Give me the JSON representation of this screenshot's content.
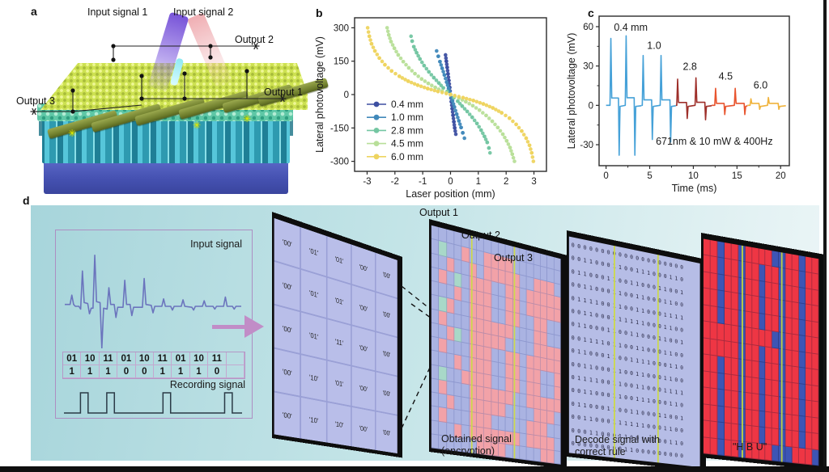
{
  "panels": {
    "a": {
      "label": "a",
      "input1": "Input signal 1",
      "input2": "Input signal 2",
      "output1": "Output 1",
      "output2": "Output 2",
      "output3": "Output 3"
    },
    "b": {
      "label": "b"
    },
    "c": {
      "label": "c"
    },
    "d": {
      "label": "d",
      "input_signal_label": "Input signal",
      "recording_signal_label": "Recording signal",
      "code_row1": [
        "01",
        "10",
        "11",
        "01",
        "10",
        "11",
        "01",
        "10",
        "11",
        ""
      ],
      "code_row2": [
        "1",
        "1",
        "1",
        "0",
        "0",
        "1",
        "1",
        "1",
        "0",
        ""
      ],
      "waveform_points": [
        [
          0,
          2
        ],
        [
          3,
          2
        ],
        [
          4,
          12
        ],
        [
          5,
          2
        ],
        [
          6,
          0
        ],
        [
          8,
          0
        ],
        [
          9,
          -3
        ],
        [
          10,
          38
        ],
        [
          11,
          4
        ],
        [
          13,
          3
        ],
        [
          14,
          -8
        ],
        [
          15,
          -2
        ],
        [
          16,
          -2
        ],
        [
          17,
          55
        ],
        [
          18,
          5
        ],
        [
          20,
          4
        ],
        [
          21,
          -45
        ],
        [
          22,
          -2
        ],
        [
          24,
          -3
        ],
        [
          25,
          20
        ],
        [
          26,
          2
        ],
        [
          28,
          2
        ],
        [
          29,
          -12
        ],
        [
          30,
          -1
        ],
        [
          33,
          -1
        ],
        [
          34,
          28
        ],
        [
          35,
          2
        ],
        [
          37,
          2
        ],
        [
          38,
          -10
        ],
        [
          39,
          -1
        ],
        [
          44,
          -1
        ],
        [
          45,
          30
        ],
        [
          46,
          2
        ],
        [
          49,
          1
        ],
        [
          50,
          -7
        ],
        [
          51,
          0
        ],
        [
          55,
          0
        ],
        [
          56,
          8
        ],
        [
          57,
          0
        ],
        [
          60,
          0
        ],
        [
          61,
          -4
        ],
        [
          62,
          0
        ],
        [
          66,
          0
        ],
        [
          67,
          7
        ],
        [
          68,
          0
        ],
        [
          72,
          -1
        ],
        [
          73,
          -4
        ],
        [
          74,
          0
        ],
        [
          78,
          0
        ],
        [
          79,
          6
        ],
        [
          80,
          0
        ],
        [
          84,
          0
        ],
        [
          85,
          -3
        ],
        [
          86,
          0
        ],
        [
          90,
          0
        ],
        [
          91,
          10
        ],
        [
          92,
          0
        ],
        [
          95,
          0
        ],
        [
          96,
          -3
        ],
        [
          97,
          0
        ],
        [
          100,
          0
        ]
      ],
      "recording_pulses": [
        0.1,
        0.245,
        0.555,
        0.895
      ],
      "grid_codes": [
        [
          "'00'",
          "'01'",
          "'01'",
          "'00'",
          "'00'"
        ],
        [
          "'00'",
          "'01'",
          "'01'",
          "'00'",
          "'00'"
        ],
        [
          "'00'",
          "'01'",
          "'11'",
          "'00'",
          "'00'"
        ],
        [
          "'00'",
          "'10'",
          "'01'",
          "'00'",
          "'00'"
        ],
        [
          "'00'",
          "'10'",
          "'10'",
          "'00'",
          "'00'"
        ]
      ],
      "outputs": [
        "Output 1",
        "Output 2",
        "Output 3"
      ],
      "encrypted_grid": [
        "LLLLLLLLLLLLLLLLLL",
        "LTLLPLLPPPPLLLLLLL",
        "LLPLLPLPPPPPLLPPPL",
        "LPLTLPPPLLPPLPPPPP",
        "LLLPLPPPLLPPLPPPPP",
        "LTPLLPPPLLPPLLPPLL",
        "LPLLLPPPPPPLLLPPLL",
        "LLPTLPPPPPLLLLPPPP",
        "LPLLLPPPLLPPLPPPPP",
        "LLLPLPPPLLPPLPPLLP",
        "LTLLPPPPLLPPLPPLLP",
        "LPLLLPPPPPPLLPPPPP",
        "LLPLLPPPPPLLLLPPPL",
        "LPLLLPPPLLLLLPPPLL",
        "LLLPLPPPPPPPLPPPPL",
        "LLLLLLPPPPLLLLLPPL"
      ],
      "binary_rows": [
        "00000000000000000000",
        "00110001100111000110",
        "01100011001100011001",
        "00110001100110001100",
        "01111001100110001111",
        "00110001111110001100",
        "01100011001100011001",
        "00111101100110001100",
        "01100011001111000110",
        "00110001100110001100",
        "01111001100110001111",
        "00110001100111000110",
        "01100011001100011001",
        "00110001111110001100",
        "00011000110011000110",
        "00000000011000000000"
      ],
      "hbu_grid": [
        "11011011110011011",
        "11011011011011011",
        "11011011011011011",
        "11011011011011011",
        "11011011011011011",
        "11111011110011011",
        "11111011011011011",
        "11011011011011011",
        "11011011011011011",
        "11011011011011011",
        "11011011011011011",
        "11011011011011011",
        "11011011110001110"
      ],
      "captions": {
        "obtained": "Obtained signal\n(encryption)",
        "decode": "Decode signal  with\ncorrect rule",
        "hbu": "\"H B U\""
      }
    }
  },
  "colors": {
    "pink_pixel": "#f2a2a8",
    "lavender_pixel": "#aab3e2",
    "teal_pixel": "#a8d8c8",
    "yellow_line": "#ccd94c",
    "hbu_blue": "#3d55b5",
    "hbu_red": "#ee3644",
    "waveform": "#6b74bd",
    "recording": "#2a3a46",
    "arrow": "#c18dc7"
  },
  "chart_data": [
    {
      "type": "scatter",
      "panel": "b",
      "xlabel": "Laser position (mm)",
      "ylabel": "Lateral photovoltage (mV)",
      "xlim": [
        -3.45,
        3.45
      ],
      "ylim": [
        -345,
        345
      ],
      "xticks": [
        -3,
        -2,
        -1,
        0,
        1,
        2,
        3
      ],
      "yticks": [
        -300,
        -150,
        0,
        150,
        300
      ],
      "legend_position": "lower left",
      "grid": false,
      "series": [
        {
          "name": "0.4 mm",
          "color": "#3d4fa1",
          "points": [
            [
              -0.18,
              178
            ],
            [
              -0.15,
              150
            ],
            [
              -0.12,
              122
            ],
            [
              -0.09,
              93
            ],
            [
              -0.06,
              63
            ],
            [
              -0.03,
              32
            ],
            [
              0,
              0
            ],
            [
              0.03,
              -32
            ],
            [
              0.06,
              -63
            ],
            [
              0.09,
              -93
            ],
            [
              0.12,
              -122
            ],
            [
              0.15,
              -150
            ],
            [
              0.19,
              -178
            ]
          ]
        },
        {
          "name": "1.0 mm",
          "color": "#4189ba",
          "points": [
            [
              -0.5,
              196
            ],
            [
              -0.44,
              172
            ],
            [
              -0.38,
              148
            ],
            [
              -0.3,
              118
            ],
            [
              -0.22,
              88
            ],
            [
              -0.14,
              56
            ],
            [
              -0.07,
              28
            ],
            [
              0,
              0
            ],
            [
              0.07,
              -28
            ],
            [
              0.14,
              -56
            ],
            [
              0.22,
              -88
            ],
            [
              0.3,
              -118
            ],
            [
              0.38,
              -148
            ],
            [
              0.44,
              -172
            ],
            [
              0.5,
              -196
            ]
          ]
        },
        {
          "name": "2.8 mm",
          "color": "#74c6a2",
          "points": [
            [
              -1.42,
              262
            ],
            [
              -1.38,
              240
            ],
            [
              -1.32,
              215
            ],
            [
              -1.22,
              188
            ],
            [
              -1.1,
              160
            ],
            [
              -0.95,
              130
            ],
            [
              -0.78,
              102
            ],
            [
              -0.6,
              76
            ],
            [
              -0.42,
              52
            ],
            [
              -0.26,
              30
            ],
            [
              -0.12,
              14
            ],
            [
              0,
              0
            ],
            [
              0.12,
              -14
            ],
            [
              0.26,
              -30
            ],
            [
              0.42,
              -52
            ],
            [
              0.6,
              -76
            ],
            [
              0.78,
              -102
            ],
            [
              0.95,
              -130
            ],
            [
              1.1,
              -160
            ],
            [
              1.22,
              -188
            ],
            [
              1.32,
              -215
            ],
            [
              1.38,
              -240
            ],
            [
              1.42,
              -262
            ]
          ]
        },
        {
          "name": "4.5 mm",
          "color": "#b8df99",
          "points": [
            [
              -2.28,
              300
            ],
            [
              -2.22,
              268
            ],
            [
              -2.14,
              238
            ],
            [
              -2.02,
              208
            ],
            [
              -1.88,
              178
            ],
            [
              -1.7,
              148
            ],
            [
              -1.5,
              120
            ],
            [
              -1.28,
              94
            ],
            [
              -1.04,
              70
            ],
            [
              -0.8,
              50
            ],
            [
              -0.55,
              32
            ],
            [
              -0.3,
              16
            ],
            [
              0,
              0
            ],
            [
              0.3,
              -16
            ],
            [
              0.55,
              -32
            ],
            [
              0.8,
              -50
            ],
            [
              1.04,
              -70
            ],
            [
              1.28,
              -94
            ],
            [
              1.5,
              -120
            ],
            [
              1.7,
              -148
            ],
            [
              1.88,
              -178
            ],
            [
              2.02,
              -208
            ],
            [
              2.14,
              -238
            ],
            [
              2.22,
              -268
            ],
            [
              2.3,
              -300
            ]
          ]
        },
        {
          "name": "6.0 mm",
          "color": "#eed45f",
          "points": [
            [
              -2.98,
              300
            ],
            [
              -2.92,
              262
            ],
            [
              -2.84,
              228
            ],
            [
              -2.72,
              196
            ],
            [
              -2.56,
              164
            ],
            [
              -2.36,
              134
            ],
            [
              -2.12,
              106
            ],
            [
              -1.84,
              82
            ],
            [
              -1.52,
              60
            ],
            [
              -1.18,
              42
            ],
            [
              -0.82,
              27
            ],
            [
              -0.45,
              14
            ],
            [
              0,
              0
            ],
            [
              0.45,
              -14
            ],
            [
              0.82,
              -27
            ],
            [
              1.18,
              -42
            ],
            [
              1.52,
              -60
            ],
            [
              1.84,
              -82
            ],
            [
              2.12,
              -106
            ],
            [
              2.36,
              -134
            ],
            [
              2.56,
              -164
            ],
            [
              2.72,
              -196
            ],
            [
              2.84,
              -228
            ],
            [
              2.92,
              -262
            ],
            [
              2.98,
              -300
            ]
          ]
        }
      ]
    },
    {
      "type": "line",
      "panel": "c",
      "xlabel": "Time (ms)",
      "ylabel": "Lateral photovoltage (mV)",
      "xlim": [
        -0.8,
        21
      ],
      "ylim": [
        -46,
        68
      ],
      "xticks": [
        0,
        5,
        10,
        15,
        20
      ],
      "yticks": [
        -30,
        0,
        30,
        60
      ],
      "annotation": {
        "text": "671nm & 10 mW & 400Hz",
        "x": 5.7,
        "y": -30
      },
      "series": [
        {
          "name": "0.4 mm",
          "color": "#45a1d8",
          "t_range": [
            0,
            4.05
          ],
          "label": "0.4 mm",
          "label_pos": [
            0.9,
            57
          ],
          "pulses": [
            {
              "tp": 0.55,
              "peak": 51,
              "tt": 1.5,
              "trough": -38
            },
            {
              "tp": 2.3,
              "peak": 53,
              "tt": 3.3,
              "trough": -38
            }
          ]
        },
        {
          "name": "1.0 mm",
          "color": "#45a1d8",
          "t_range": [
            4.05,
            8.0
          ],
          "label": "1.0",
          "label_pos": [
            4.7,
            43
          ],
          "pulses": [
            {
              "tp": 4.25,
              "peak": 38,
              "tt": 5.3,
              "trough": -26
            },
            {
              "tp": 6.3,
              "peak": 38,
              "tt": 7.4,
              "trough": -28
            }
          ]
        },
        {
          "name": "2.8 mm",
          "color": "#9e2f2a",
          "t_range": [
            8.0,
            12.1
          ],
          "label": "2.8",
          "label_pos": [
            8.8,
            27
          ],
          "pulses": [
            {
              "tp": 8.2,
              "peak": 20,
              "tt": 9.3,
              "trough": -10
            },
            {
              "tp": 10.3,
              "peak": 21,
              "tt": 11.4,
              "trough": -11
            }
          ]
        },
        {
          "name": "4.5 mm",
          "color": "#e8552f",
          "t_range": [
            12.1,
            16.2
          ],
          "label": "4.5",
          "label_pos": [
            12.9,
            19.5
          ],
          "pulses": [
            {
              "tp": 12.55,
              "peak": 13,
              "tt": 13.6,
              "trough": -7
            },
            {
              "tp": 14.8,
              "peak": 13,
              "tt": 15.9,
              "trough": -7
            }
          ]
        },
        {
          "name": "6.0 mm",
          "color": "#f0b33c",
          "t_range": [
            16.2,
            20.6
          ],
          "label": "6.0",
          "label_pos": [
            16.9,
            13
          ],
          "pulses": [
            {
              "tp": 16.6,
              "peak": 5,
              "tt": 17.6,
              "trough": -3
            },
            {
              "tp": 18.6,
              "peak": 6,
              "tt": 19.8,
              "trough": -3
            }
          ]
        }
      ]
    }
  ]
}
